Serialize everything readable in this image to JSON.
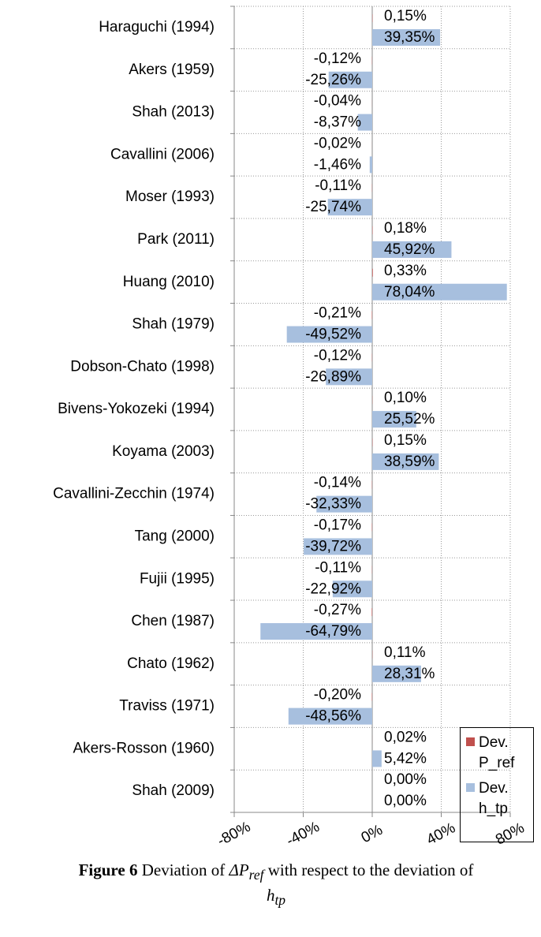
{
  "chart_data": {
    "type": "bar",
    "orientation": "horizontal",
    "categories": [
      "Haraguchi (1994)",
      "Akers (1959)",
      "Shah (2013)",
      "Cavallini (2006)",
      "Moser (1993)",
      "Park (2011)",
      "Huang (2010)",
      "Shah (1979)",
      "Dobson-Chato (1998)",
      "Bivens-Yokozeki (1994)",
      "Koyama (2003)",
      "Cavallini-Zecchin (1974)",
      "Tang (2000)",
      "Fujii (1995)",
      "Chen (1987)",
      "Chato (1962)",
      "Traviss (1971)",
      "Akers-Rosson (1960)",
      "Shah (2009)"
    ],
    "series": [
      {
        "name": "Dev. P_ref",
        "color": "#c0504d",
        "values": [
          0.15,
          -0.12,
          -0.04,
          -0.02,
          -0.11,
          0.18,
          0.33,
          -0.21,
          -0.12,
          0.1,
          0.15,
          -0.14,
          -0.17,
          -0.11,
          -0.27,
          0.11,
          -0.2,
          0.02,
          0.0
        ],
        "value_labels": [
          "0,15%",
          "-0,12%",
          "-0,04%",
          "-0,02%",
          "-0,11%",
          "0,18%",
          "0,33%",
          "-0,21%",
          "-0,12%",
          "0,10%",
          "0,15%",
          "-0,14%",
          "-0,17%",
          "-0,11%",
          "-0,27%",
          "0,11%",
          "-0,20%",
          "0,02%",
          "0,00%"
        ]
      },
      {
        "name": "Dev. h_tp",
        "color": "#a7bfde",
        "values": [
          39.35,
          -25.26,
          -8.37,
          -1.46,
          -25.74,
          45.92,
          78.04,
          -49.52,
          -26.89,
          25.52,
          38.59,
          -32.33,
          -39.72,
          -22.92,
          -64.79,
          28.31,
          -48.56,
          5.42,
          0.0
        ],
        "value_labels": [
          "39,35%",
          "-25,26%",
          "-8,37%",
          "-1,46%",
          "-25,74%",
          "45,92%",
          "78,04%",
          "-49,52%",
          "-26,89%",
          "25,52%",
          "38,59%",
          "-32,33%",
          "-39,72%",
          "-22,92%",
          "-64,79%",
          "28,31%",
          "-48,56%",
          "5,42%",
          "0,00%"
        ]
      }
    ],
    "xlim": [
      -80,
      80
    ],
    "xticks": [
      {
        "value": -80,
        "label": "-80%"
      },
      {
        "value": -40,
        "label": "-40%"
      },
      {
        "value": 0,
        "label": "0%"
      },
      {
        "value": 40,
        "label": "40%"
      },
      {
        "value": 80,
        "label": "80%"
      }
    ],
    "grid": true,
    "legend": "lower right"
  },
  "caption": {
    "label": "Figure 6",
    "text": " Deviation of ",
    "symbol": "ΔP",
    "symbol_sub": "ref",
    "text2": " with respect to the deviation of ",
    "symbol2": "h",
    "symbol2_sub": "tp"
  }
}
